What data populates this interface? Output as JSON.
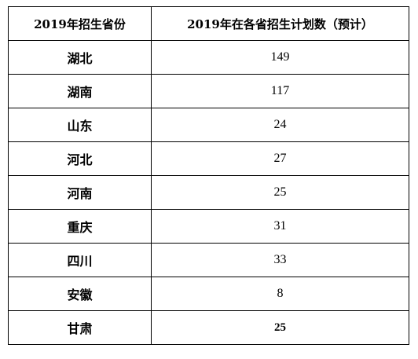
{
  "table": {
    "headers": [
      "2019年招生省份",
      "2019年在各省招生计划数（预计）"
    ],
    "rows": [
      {
        "province": "湖北",
        "count": "149"
      },
      {
        "province": "湖南",
        "count": "117"
      },
      {
        "province": "山东",
        "count": "24"
      },
      {
        "province": "河北",
        "count": "27"
      },
      {
        "province": "河南",
        "count": "25"
      },
      {
        "province": "重庆",
        "count": "31"
      },
      {
        "province": "四川",
        "count": "33"
      },
      {
        "province": "安徽",
        "count": "8"
      },
      {
        "province": "甘肃",
        "count": "25"
      }
    ]
  }
}
